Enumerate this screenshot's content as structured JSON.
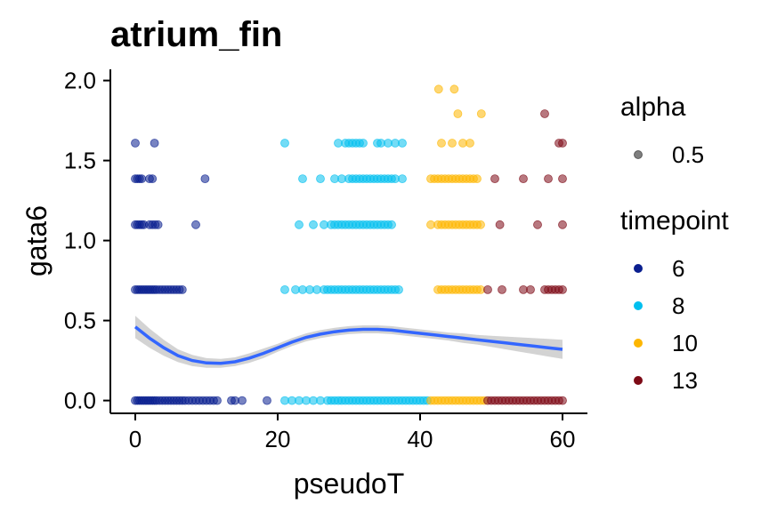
{
  "chart_data": {
    "type": "scatter",
    "title": "atrium_fin",
    "xlabel": "pseudoT",
    "ylabel": "gata6",
    "xlim": [
      -3.5,
      63.5
    ],
    "ylim": [
      -0.08,
      2.07
    ],
    "x_ticks": [
      "0",
      "20",
      "40",
      "60"
    ],
    "x_tick_values": [
      0,
      20,
      40,
      60
    ],
    "y_ticks": [
      "0.0",
      "0.5",
      "1.0",
      "1.5",
      "2.0"
    ],
    "y_tick_values": [
      0.0,
      0.5,
      1.0,
      1.5,
      2.0
    ],
    "grid": false,
    "legend_position": "right",
    "legend_alpha": {
      "title": "alpha",
      "entries": [
        "0.5"
      ]
    },
    "legend_timepoint": {
      "title": "timepoint",
      "entries": [
        "6",
        "8",
        "10",
        "13"
      ]
    },
    "colors": {
      "6": "#0a1f8f",
      "8": "#00bfef",
      "10": "#fdb600",
      "13": "#7d0a16",
      "smooth": "#3366ff",
      "ribbon": "#c8c8c8"
    },
    "series": [
      {
        "timepoint": "6",
        "levels": [
          {
            "y": 0.0,
            "x": [
              0,
              0.3,
              0.6,
              0.9,
              1.2,
              1.5,
              1.8,
              2.1,
              2.4,
              2.7,
              3.0,
              3.4,
              3.8,
              4.2,
              4.6,
              5.0,
              5.4,
              5.8,
              6.2,
              6.6,
              7.0,
              7.5,
              8.0,
              8.5,
              9.0,
              9.5,
              10.0,
              10.5,
              11.0,
              11.5,
              13.5,
              14.0,
              15.0,
              18.5
            ]
          },
          {
            "y": 0.693,
            "x": [
              0,
              0.3,
              0.6,
              0.9,
              1.2,
              1.5,
              1.8,
              2.1,
              2.4,
              2.7,
              3.0,
              3.4,
              3.8,
              4.2,
              4.6,
              5.0,
              5.4,
              5.8,
              6.2,
              6.6
            ]
          },
          {
            "y": 1.099,
            "x": [
              0,
              0.3,
              0.6,
              0.9,
              1.2,
              2.0,
              2.4,
              2.8,
              3.2,
              8.5
            ]
          },
          {
            "y": 1.386,
            "x": [
              0,
              0.3,
              0.6,
              0.9,
              2.0,
              2.4,
              9.8
            ]
          },
          {
            "y": 1.609,
            "x": [
              0,
              2.7
            ]
          }
        ]
      },
      {
        "timepoint": "8",
        "levels": [
          {
            "y": 0.0,
            "x": [
              21,
              22,
              23,
              24,
              25,
              26,
              27,
              27.5,
              28,
              28.5,
              29,
              29.5,
              30,
              30.5,
              31,
              31.5,
              32,
              32.5,
              33,
              33.5,
              34,
              34.5,
              35,
              35.5,
              36,
              36.5,
              37,
              37.5,
              38,
              38.5,
              39,
              39.5,
              40,
              40.5,
              41
            ]
          },
          {
            "y": 0.693,
            "x": [
              21,
              22.5,
              23.5,
              24.5,
              25.5,
              26.5,
              27,
              27.5,
              28,
              28.5,
              29,
              29.5,
              30,
              30.5,
              31,
              31.5,
              32,
              32.5,
              33,
              33.5,
              34,
              34.5,
              35,
              35.5,
              36,
              36.5,
              37
            ]
          },
          {
            "y": 1.099,
            "x": [
              23,
              25,
              26.5,
              27.5,
              28,
              28.5,
              29,
              29.5,
              30,
              30.5,
              31,
              31.5,
              32,
              32.5,
              33,
              33.5,
              34,
              34.5,
              35,
              35.5,
              36
            ]
          },
          {
            "y": 1.386,
            "x": [
              23.5,
              26,
              28,
              29,
              30,
              30.5,
              31,
              31.5,
              32,
              32.5,
              33,
              33.5,
              34,
              34.5,
              35,
              35.5,
              36,
              36.5,
              37.5
            ]
          },
          {
            "y": 1.609,
            "x": [
              21,
              28.5,
              29.5,
              30,
              30.5,
              31,
              31.5,
              32,
              34,
              34.5,
              35.5,
              36.5,
              37.5
            ]
          }
        ]
      },
      {
        "timepoint": "10",
        "levels": [
          {
            "y": 0.0,
            "x": [
              41.5,
              42,
              42.5,
              43,
              43.5,
              44,
              44.5,
              45,
              45.5,
              46,
              46.5,
              47,
              47.5,
              48,
              48.5,
              49
            ]
          },
          {
            "y": 0.693,
            "x": [
              42.5,
              43,
              43.5,
              44,
              44.5,
              45,
              45.5,
              46,
              46.5,
              47,
              47.5,
              48,
              48.5
            ]
          },
          {
            "y": 1.099,
            "x": [
              41.5,
              42.5,
              43,
              43.5,
              44,
              44.5,
              45,
              45.5,
              46,
              46.5,
              47,
              47.5,
              48,
              48.5
            ]
          },
          {
            "y": 1.386,
            "x": [
              41.5,
              42,
              42.5,
              43,
              43.5,
              44,
              44.5,
              45,
              45.5,
              46,
              46.5,
              47,
              47.5,
              48
            ]
          },
          {
            "y": 1.609,
            "x": [
              43,
              44.5,
              46,
              47
            ]
          },
          {
            "y": 1.792,
            "x": [
              45.3,
              48.6
            ]
          },
          {
            "y": 1.946,
            "x": [
              42.6,
              44.8
            ]
          }
        ]
      },
      {
        "timepoint": "13",
        "levels": [
          {
            "y": 0.0,
            "x": [
              49.5,
              50,
              50.5,
              51,
              51.5,
              52,
              52.5,
              53,
              53.5,
              54,
              54.5,
              55,
              55.5,
              56,
              56.5,
              57,
              57.5,
              58,
              58.5,
              59,
              59.5,
              60
            ]
          },
          {
            "y": 0.693,
            "x": [
              49.5,
              51.5,
              54.5,
              55.5,
              57.5,
              58,
              58.5,
              59,
              59.5,
              60
            ]
          },
          {
            "y": 1.099,
            "x": [
              51.2,
              56.5,
              60
            ]
          },
          {
            "y": 1.386,
            "x": [
              50.5,
              54.5,
              58,
              60
            ]
          },
          {
            "y": 1.609,
            "x": [
              59.5,
              60
            ]
          },
          {
            "y": 1.792,
            "x": [
              57.5
            ]
          }
        ]
      }
    ],
    "smooth": {
      "x": [
        0,
        2,
        4,
        6,
        8,
        10,
        12,
        14,
        16,
        18,
        20,
        22,
        24,
        26,
        28,
        30,
        32,
        34,
        36,
        38,
        40,
        42,
        44,
        46,
        48,
        50,
        52,
        54,
        56,
        58,
        60
      ],
      "y": [
        0.46,
        0.39,
        0.33,
        0.28,
        0.25,
        0.235,
        0.232,
        0.242,
        0.265,
        0.295,
        0.33,
        0.365,
        0.395,
        0.415,
        0.43,
        0.44,
        0.445,
        0.445,
        0.44,
        0.43,
        0.42,
        0.41,
        0.4,
        0.39,
        0.38,
        0.37,
        0.36,
        0.35,
        0.34,
        0.33,
        0.32
      ],
      "lower": [
        0.39,
        0.33,
        0.28,
        0.24,
        0.215,
        0.205,
        0.205,
        0.215,
        0.235,
        0.265,
        0.305,
        0.34,
        0.37,
        0.39,
        0.405,
        0.415,
        0.42,
        0.42,
        0.415,
        0.405,
        0.395,
        0.385,
        0.375,
        0.36,
        0.35,
        0.335,
        0.32,
        0.305,
        0.29,
        0.275,
        0.26
      ],
      "upper": [
        0.53,
        0.45,
        0.38,
        0.32,
        0.285,
        0.265,
        0.26,
        0.27,
        0.295,
        0.325,
        0.355,
        0.39,
        0.42,
        0.44,
        0.455,
        0.465,
        0.47,
        0.47,
        0.465,
        0.455,
        0.445,
        0.435,
        0.425,
        0.42,
        0.41,
        0.405,
        0.4,
        0.395,
        0.39,
        0.385,
        0.38
      ]
    }
  }
}
